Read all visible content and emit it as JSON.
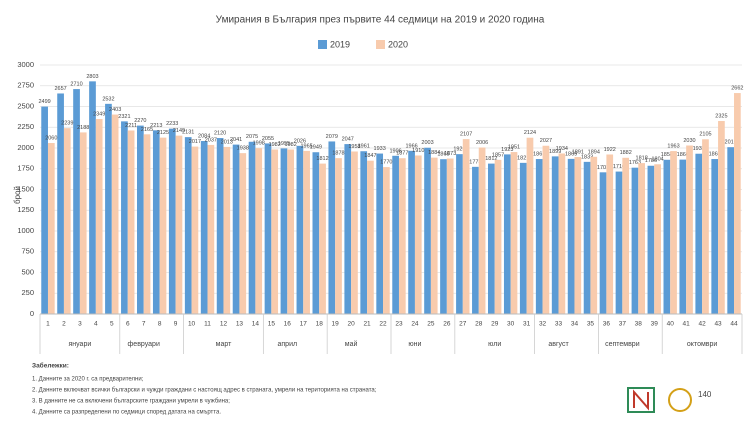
{
  "chart_data": {
    "type": "bar",
    "title": "Умирания в България през първите 44 седмици на 2019 и 2020 година",
    "y_label": "брой",
    "categories": [
      "1",
      "2",
      "3",
      "4",
      "5",
      "6",
      "7",
      "8",
      "9",
      "10",
      "11",
      "12",
      "13",
      "14",
      "15",
      "16",
      "17",
      "18",
      "19",
      "20",
      "21",
      "22",
      "23",
      "24",
      "25",
      "26",
      "27",
      "28",
      "29",
      "30",
      "31",
      "32",
      "33",
      "34",
      "35",
      "36",
      "37",
      "38",
      "39",
      "40",
      "41",
      "42",
      "43",
      "44"
    ],
    "months": [
      null,
      null,
      "януари",
      null,
      null,
      null,
      "февруари",
      null,
      null,
      null,
      null,
      "март",
      null,
      null,
      null,
      "април",
      null,
      null,
      null,
      "май",
      null,
      null,
      null,
      "юни",
      null,
      null,
      null,
      null,
      "юли",
      null,
      null,
      null,
      "август",
      null,
      null,
      null,
      "септември",
      null,
      null,
      null,
      null,
      "октомври",
      null,
      null
    ],
    "series": [
      {
        "name": "2019",
        "color": "#5b9bd5",
        "values": [
          2499,
          2657,
          2710,
          2803,
          2532,
          2321,
          2270,
          2213,
          2233,
          2131,
          2084,
          2120,
          2041,
          2075,
          2055,
          1995,
          2026,
          1949,
          2079,
          2047,
          1961,
          1933,
          1906,
          1966,
          2003,
          1865,
          1926,
          1773,
          1812,
          1923,
          1821,
          1867,
          1899,
          1869,
          1833,
          1707,
          1716,
          1763,
          1786,
          1858,
          1860,
          1931,
          1867,
          2010
        ]
      },
      {
        "name": "2020",
        "color": "#f8cbad",
        "values": [
          2060,
          2239,
          2188,
          2349,
          2403,
          2211,
          2165,
          2125,
          2149,
          2017,
          2037,
          2013,
          1938,
          1998,
          1982,
          1982,
          1965,
          1812,
          1878,
          1958,
          1847,
          1770,
          1877,
          1910,
          1884,
          1873,
          2107,
          2006,
          1857,
          1951,
          2124,
          2027,
          1934,
          1891,
          1894,
          1922,
          1882,
          1818,
          1804,
          1963,
          2030,
          2105,
          2325,
          2662
        ]
      }
    ],
    "ylim": [
      0,
      3000
    ],
    "yticks": [
      0,
      250,
      500,
      750,
      1000,
      1250,
      1500,
      1750,
      2000,
      2250,
      2500,
      2750,
      3000
    ],
    "grid": true,
    "notes_title": "Забележки:",
    "notes": [
      "1. Данните за 2020 г. са предварителни;",
      "2. Данните включват всички български и чужди граждани с настоящ адрес в страната, умрели на територията на страната;",
      "3. В данните не са включени българските граждани умрели в чужбина;",
      "4. Данните са разпределени по седмици според датата на смъртта."
    ],
    "logo_text": "140"
  }
}
